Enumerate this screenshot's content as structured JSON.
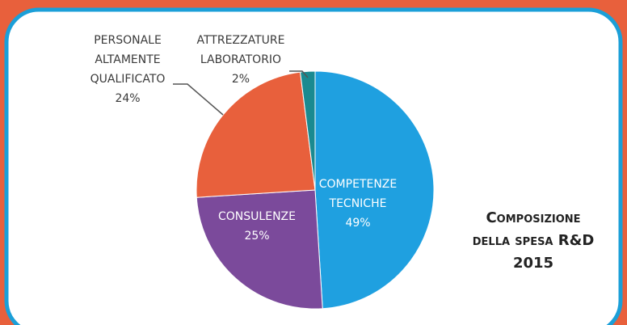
{
  "chart_data": {
    "type": "pie",
    "title": "Composizione della spesa R&D 2015",
    "categories": [
      "COMPETENZE TECNICHE",
      "CONSULENZE",
      "PERSONALE ALTAMENTE QUALIFICATO",
      "ATTREZZATURE LABORATORIO"
    ],
    "values": [
      49,
      25,
      24,
      2
    ],
    "value_labels": [
      "49%",
      "25%",
      "24%",
      "2%"
    ],
    "colors": [
      "#1fa0e0",
      "#7b4a9b",
      "#e8603c",
      "#1a8a90"
    ]
  }
}
